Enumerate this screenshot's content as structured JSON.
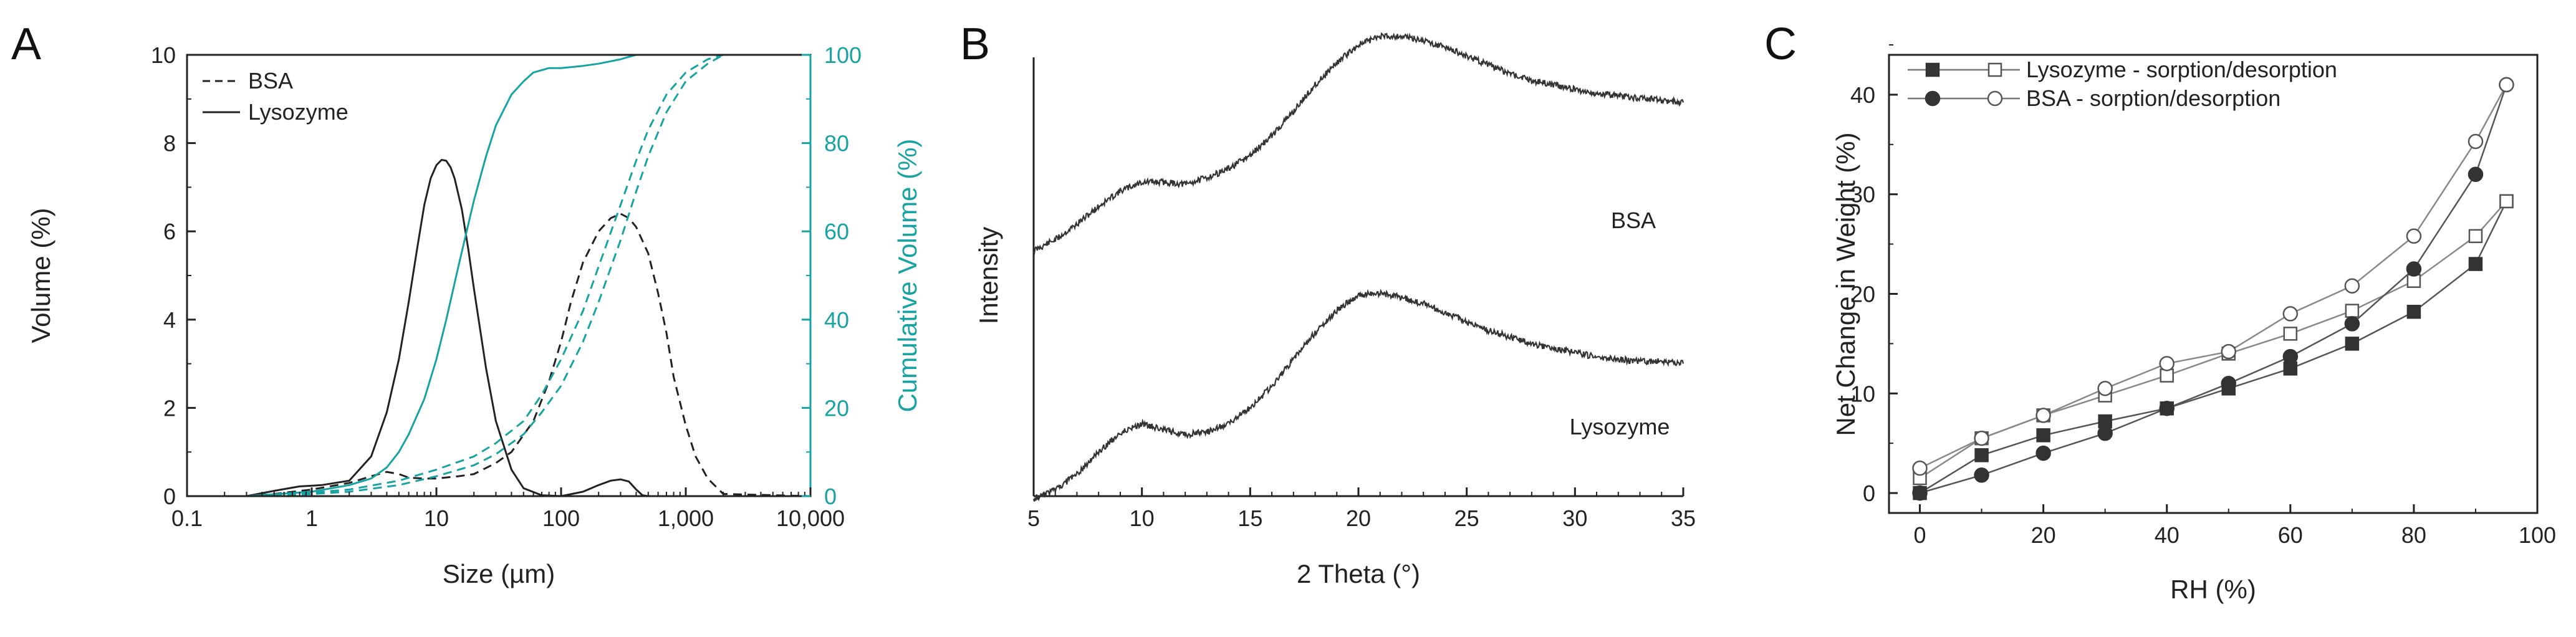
{
  "chart_data": [
    {
      "panel": "A",
      "type": "line",
      "xlabel": "Size (µm)",
      "ylabel": "Volume (%)",
      "ylabel_right": "Cumulative Volume (%)",
      "xscale": "log",
      "xlim": [
        0.1,
        10000
      ],
      "ylim": [
        0,
        10
      ],
      "ylim_right": [
        0,
        100
      ],
      "xticks": [
        0.1,
        1,
        10,
        100,
        1000,
        10000
      ],
      "xtick_labels": [
        "0.1",
        "1",
        "10",
        "100",
        "1,000",
        "10,000"
      ],
      "yticks": [
        0,
        2,
        4,
        6,
        8,
        10
      ],
      "ytick_labels": [
        "0",
        "2",
        "4",
        "6",
        "8",
        "10"
      ],
      "yticks_right": [
        0,
        20,
        40,
        60,
        80,
        100
      ],
      "ytick_labels_right": [
        "0",
        "20",
        "40",
        "60",
        "80",
        "100"
      ],
      "legend": [
        {
          "label": "BSA",
          "style": "dashed"
        },
        {
          "label": "Lysozyme",
          "style": "solid"
        }
      ],
      "legend_position": "top-left",
      "series": [
        {
          "name": "Lysozyme",
          "axis": "left",
          "style": "solid",
          "color": "#222222",
          "x": [
            0.1,
            0.3,
            0.5,
            0.8,
            1.2,
            2,
            3,
            4,
            5,
            6,
            7,
            8,
            9,
            10,
            11,
            12,
            13,
            14,
            16,
            18,
            20,
            25,
            30,
            40,
            50,
            70,
            100,
            150,
            200,
            250,
            300,
            350,
            400,
            450,
            500,
            1000,
            10000
          ],
          "y": [
            0,
            0,
            0.12,
            0.22,
            0.25,
            0.35,
            0.9,
            1.9,
            3.1,
            4.4,
            5.6,
            6.6,
            7.2,
            7.5,
            7.62,
            7.6,
            7.45,
            7.2,
            6.5,
            5.6,
            4.7,
            2.9,
            1.7,
            0.6,
            0.18,
            0.02,
            0,
            0.1,
            0.25,
            0.35,
            0.38,
            0.33,
            0.15,
            0.02,
            0,
            0,
            0
          ]
        },
        {
          "name": "BSA",
          "axis": "left",
          "style": "dashed",
          "color": "#222222",
          "x": [
            0.1,
            0.3,
            0.5,
            1,
            2,
            3,
            4,
            5,
            6,
            8,
            10,
            15,
            20,
            30,
            40,
            60,
            80,
            100,
            120,
            150,
            200,
            250,
            300,
            350,
            400,
            500,
            600,
            700,
            800,
            1000,
            1200,
            1500,
            2000,
            10000
          ],
          "y": [
            0,
            0,
            0.05,
            0.15,
            0.3,
            0.45,
            0.55,
            0.5,
            0.42,
            0.4,
            0.4,
            0.45,
            0.5,
            0.75,
            1.0,
            1.7,
            2.6,
            3.5,
            4.4,
            5.3,
            6.0,
            6.3,
            6.4,
            6.3,
            6.1,
            5.5,
            4.6,
            3.7,
            2.7,
            1.6,
            0.9,
            0.4,
            0.05,
            0
          ]
        },
        {
          "name": "Lysozyme",
          "axis": "right",
          "style": "solid",
          "color": "#17a3a3",
          "x": [
            0.1,
            0.3,
            1,
            2,
            3,
            4,
            5,
            6,
            8,
            10,
            12,
            15,
            20,
            25,
            30,
            40,
            50,
            60,
            80,
            100,
            150,
            200,
            300,
            400,
            500,
            1000,
            10000
          ],
          "y": [
            0,
            0,
            1,
            2.5,
            4,
            6.5,
            10,
            14,
            22,
            31,
            40,
            52,
            67,
            77,
            84,
            91,
            94,
            96,
            97,
            97,
            97.5,
            98,
            99,
            100,
            100,
            100,
            100
          ]
        },
        {
          "name": "BSA",
          "axis": "right",
          "style": "dashed",
          "color": "#17a3a3",
          "x": [
            0.1,
            0.3,
            1,
            2,
            5,
            10,
            20,
            30,
            50,
            70,
            100,
            150,
            200,
            300,
            400,
            500,
            700,
            1000,
            1500,
            2000,
            10000
          ],
          "y": [
            0,
            0,
            0.5,
            1,
            2.5,
            4.5,
            7,
            9.5,
            14,
            19,
            25,
            35,
            44,
            58,
            69,
            77,
            87,
            94,
            98,
            100,
            100
          ]
        },
        {
          "name": "BSA",
          "axis": "right",
          "style": "dashed",
          "color": "#17a3a3",
          "x": [
            0.1,
            0.3,
            1,
            2,
            5,
            10,
            20,
            30,
            50,
            70,
            100,
            150,
            200,
            300,
            400,
            500,
            700,
            1000,
            1500,
            2000,
            10000
          ],
          "y": [
            0,
            0,
            0.8,
            1.5,
            3.5,
            6,
            9,
            12,
            17,
            23,
            31,
            42,
            52,
            66,
            76,
            83,
            91,
            96,
            99,
            100,
            100
          ]
        }
      ]
    },
    {
      "panel": "B",
      "type": "line",
      "xlabel": "2 Theta (°)",
      "ylabel": "Intensity",
      "xlim": [
        5,
        35
      ],
      "xticks": [
        5,
        10,
        15,
        20,
        25,
        30,
        35
      ],
      "xtick_labels": [
        "5",
        "10",
        "15",
        "20",
        "25",
        "30",
        "35"
      ],
      "annotations": [
        "BSA",
        "Lysozyme"
      ],
      "series": [
        {
          "name": "BSA",
          "color": "#333333",
          "x": [
            5,
            6,
            7,
            8,
            9,
            10,
            11,
            12,
            13,
            14,
            15,
            16,
            17,
            18,
            19,
            20,
            21,
            22,
            23,
            24,
            25,
            26,
            27,
            28,
            29,
            30,
            31,
            32,
            33,
            34,
            35
          ],
          "y": [
            0.05,
            0.1,
            0.17,
            0.25,
            0.32,
            0.36,
            0.36,
            0.35,
            0.38,
            0.42,
            0.48,
            0.57,
            0.68,
            0.8,
            0.9,
            0.98,
            1.02,
            1.02,
            1.0,
            0.97,
            0.93,
            0.89,
            0.85,
            0.82,
            0.8,
            0.78,
            0.76,
            0.75,
            0.74,
            0.73,
            0.72
          ]
        },
        {
          "name": "Lysozyme",
          "color": "#333333",
          "x": [
            5,
            6,
            7,
            8,
            9,
            10,
            11,
            12,
            13,
            14,
            15,
            16,
            17,
            18,
            19,
            20,
            21,
            22,
            23,
            24,
            25,
            26,
            27,
            28,
            29,
            30,
            31,
            32,
            33,
            34,
            35
          ],
          "y": [
            0.0,
            0.04,
            0.11,
            0.21,
            0.3,
            0.34,
            0.31,
            0.29,
            0.3,
            0.34,
            0.41,
            0.51,
            0.63,
            0.75,
            0.85,
            0.92,
            0.93,
            0.91,
            0.88,
            0.84,
            0.8,
            0.76,
            0.73,
            0.7,
            0.68,
            0.66,
            0.64,
            0.63,
            0.62,
            0.62,
            0.61
          ]
        }
      ]
    },
    {
      "panel": "C",
      "type": "line",
      "xlabel": "RH (%)",
      "ylabel": "Net Change in Weight (%)",
      "xlim": [
        -5,
        100
      ],
      "ylim": [
        -2,
        44
      ],
      "xticks": [
        0,
        20,
        40,
        60,
        80,
        100
      ],
      "xtick_labels": [
        "0",
        "20",
        "40",
        "60",
        "80",
        "100"
      ],
      "yticks": [
        0,
        10,
        20,
        30,
        40
      ],
      "ytick_labels": [
        "0",
        "10",
        "20",
        "30",
        "40"
      ],
      "legend": [
        {
          "label": "Lysozyme - sorption/desorption",
          "markers": [
            "filled-square",
            "open-square"
          ]
        },
        {
          "label": "BSA - sorption/desorption",
          "markers": [
            "filled-circle",
            "open-circle"
          ]
        }
      ],
      "legend_position": "top-left",
      "series": [
        {
          "name": "Lysozyme - sorption",
          "marker": "filled-square",
          "x": [
            0,
            10,
            20,
            30,
            40,
            50,
            60,
            70,
            80,
            90,
            95
          ],
          "y": [
            0,
            3.8,
            5.8,
            7.2,
            8.5,
            10.5,
            12.5,
            15,
            18.2,
            23,
            29.3
          ]
        },
        {
          "name": "Lysozyme - desorption",
          "marker": "open-square",
          "x": [
            0,
            10,
            20,
            30,
            40,
            50,
            60,
            70,
            80,
            90,
            95
          ],
          "y": [
            1.5,
            5.5,
            7.8,
            9.8,
            11.8,
            14,
            16,
            18.3,
            21.3,
            25.8,
            29.3
          ]
        },
        {
          "name": "BSA - sorption",
          "marker": "filled-circle",
          "x": [
            0,
            10,
            20,
            30,
            40,
            50,
            60,
            70,
            80,
            90,
            95
          ],
          "y": [
            0,
            1.8,
            4,
            6,
            8.5,
            11,
            13.7,
            17,
            22.5,
            32,
            41
          ]
        },
        {
          "name": "BSA - desorption",
          "marker": "open-circle",
          "x": [
            0,
            10,
            20,
            30,
            40,
            50,
            60,
            70,
            80,
            90,
            95
          ],
          "y": [
            2.5,
            5.5,
            7.8,
            10.5,
            13,
            14.2,
            18,
            20.8,
            25.8,
            35.3,
            41
          ]
        }
      ]
    }
  ],
  "panels": {
    "a": "A",
    "b": "B",
    "c": "C"
  },
  "colors": {
    "axis": "#222222",
    "teal": "#17a3a3",
    "curve": "#333333"
  }
}
